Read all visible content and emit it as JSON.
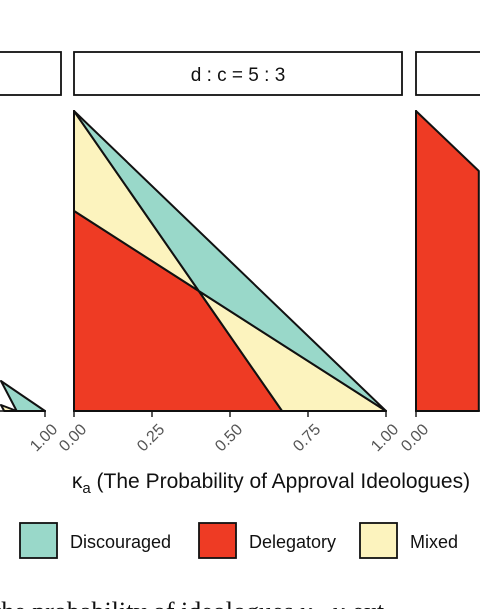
{
  "chart_data": {
    "type": "area",
    "x_title_prefix": "κ",
    "x_title_subscript": "a",
    "x_title_rest": " (The Probability of Approval Ideologues)",
    "xlim": [
      0,
      1
    ],
    "ylim": [
      0,
      1
    ],
    "x_ticks": [
      0,
      0.25,
      0.5,
      0.75,
      1
    ],
    "x_tick_labels": [
      "0.00",
      "0.25",
      "0.50",
      "0.75",
      "1.00"
    ],
    "panels": [
      {
        "strip_label": "",
        "regions": [
          {
            "name": "Discouraged",
            "points": [
              [
                0.91,
                0.0
              ],
              [
                1.0,
                0.0
              ],
              [
                0.86,
                0.1
              ]
            ]
          },
          {
            "name": "Mixed",
            "points": [
              [
                0.87,
                0.0
              ],
              [
                0.91,
                0.0
              ],
              [
                0.86,
                0.02
              ]
            ]
          }
        ]
      },
      {
        "strip_label": "d : c = 5 : 3",
        "regions": [
          {
            "name": "Delegatory",
            "points": [
              [
                0,
                0
              ],
              [
                0.667,
                0
              ],
              [
                0.4,
                0.4
              ],
              [
                0,
                0.667
              ]
            ]
          },
          {
            "name": "Mixed",
            "points": [
              [
                0,
                0.667
              ],
              [
                0,
                1
              ],
              [
                0.4,
                0.4
              ]
            ]
          },
          {
            "name": "Mixed",
            "points": [
              [
                0.4,
                0.4
              ],
              [
                1,
                0
              ],
              [
                0.667,
                0
              ]
            ]
          },
          {
            "name": "Discouraged",
            "points": [
              [
                0,
                1
              ],
              [
                0.4,
                0.4
              ],
              [
                1,
                0
              ]
            ]
          }
        ]
      },
      {
        "strip_label": "",
        "regions": [
          {
            "name": "Delegatory",
            "points": [
              [
                0,
                0
              ],
              [
                0,
                1
              ],
              [
                0.2,
                0.8
              ],
              [
                0.2,
                0
              ]
            ]
          }
        ]
      }
    ],
    "legend": [
      {
        "label": "Discouraged",
        "color": "#99d8c9"
      },
      {
        "label": "Delegatory",
        "color": "#ee3b24"
      },
      {
        "label": "Mixed",
        "color": "#fcf3be"
      }
    ]
  },
  "caption": "the probability of ideologues κ , κ ext"
}
